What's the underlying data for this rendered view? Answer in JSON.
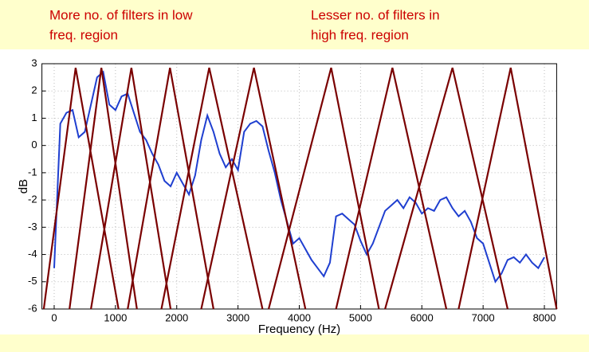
{
  "chart_data": {
    "type": "line",
    "annotations": [
      [
        "More no. of filters in low",
        "freq. region"
      ],
      [
        "Lesser no. of  filters in",
        "high  freq. region"
      ]
    ],
    "xlabel": "Frequency (Hz)",
    "ylabel": "dB",
    "xlim": [
      -200,
      8200
    ],
    "ylim": [
      -6,
      3
    ],
    "xticks": [
      0,
      1000,
      2000,
      3000,
      4000,
      5000,
      6000,
      7000,
      8000
    ],
    "yticks": [
      -6,
      -5,
      -4,
      -3,
      -2,
      -1,
      0,
      1,
      2,
      3
    ],
    "grid": true,
    "series": [
      {
        "color": "#1f3fd0",
        "x": [
          0,
          100,
          200,
          300,
          400,
          500,
          600,
          700,
          800,
          900,
          1000,
          1100,
          1200,
          1300,
          1400,
          1500,
          1600,
          1700,
          1800,
          1900,
          2000,
          2100,
          2200,
          2300,
          2400,
          2500,
          2600,
          2700,
          2800,
          2900,
          3000,
          3100,
          3200,
          3300,
          3400,
          3500,
          3600,
          3700,
          3800,
          3900,
          4000,
          4100,
          4200,
          4300,
          4400,
          4500,
          4600,
          4700,
          4800,
          4900,
          5000,
          5100,
          5200,
          5300,
          5400,
          5500,
          5600,
          5700,
          5800,
          5900,
          6000,
          6100,
          6200,
          6300,
          6400,
          6500,
          6600,
          6700,
          6800,
          6900,
          7000,
          7100,
          7200,
          7300,
          7400,
          7500,
          7600,
          7700,
          7800,
          7900,
          8000
        ],
        "values": [
          -4.5,
          0.8,
          1.2,
          1.3,
          0.3,
          0.5,
          1.5,
          2.5,
          2.7,
          1.5,
          1.3,
          1.8,
          1.9,
          1.2,
          0.5,
          0.2,
          -0.3,
          -0.7,
          -1.3,
          -1.5,
          -1.0,
          -1.4,
          -1.8,
          -1.1,
          0.2,
          1.1,
          0.5,
          -0.3,
          -0.8,
          -0.5,
          -0.9,
          0.5,
          0.8,
          0.9,
          0.7,
          -0.2,
          -1.0,
          -2.0,
          -2.8,
          -3.6,
          -3.4,
          -3.8,
          -4.2,
          -4.5,
          -4.8,
          -4.3,
          -2.6,
          -2.5,
          -2.7,
          -2.9,
          -3.5,
          -4.0,
          -3.6,
          -3.0,
          -2.4,
          -2.2,
          -2.0,
          -2.3,
          -1.9,
          -2.1,
          -2.5,
          -2.3,
          -2.4,
          -2.0,
          -1.9,
          -2.3,
          -2.6,
          -2.4,
          -2.8,
          -3.4,
          -3.6,
          -4.3,
          -5.0,
          -4.7,
          -4.2,
          -4.1,
          -4.3,
          -4.0,
          -4.3,
          -4.5,
          -4.1
        ]
      },
      {
        "color": "#7a0000",
        "x": [
          -170,
          350,
          1050
        ],
        "values": [
          -6,
          2.85,
          -6
        ]
      },
      {
        "color": "#7a0000",
        "x": [
          250,
          770,
          1350
        ],
        "values": [
          -6,
          2.85,
          -6
        ]
      },
      {
        "color": "#7a0000",
        "x": [
          600,
          1260,
          1900
        ],
        "values": [
          -6,
          2.85,
          -6
        ]
      },
      {
        "color": "#7a0000",
        "x": [
          1200,
          1890,
          2600
        ],
        "values": [
          -6,
          2.85,
          -6
        ]
      },
      {
        "color": "#7a0000",
        "x": [
          1750,
          2530,
          3400
        ],
        "values": [
          -6,
          2.85,
          -6
        ]
      },
      {
        "color": "#7a0000",
        "x": [
          2400,
          3260,
          4100
        ],
        "values": [
          -6,
          2.85,
          -6
        ]
      },
      {
        "color": "#7a0000",
        "x": [
          3500,
          4520,
          5300
        ],
        "values": [
          -6,
          2.85,
          -6
        ]
      },
      {
        "color": "#7a0000",
        "x": [
          4600,
          5520,
          6400
        ],
        "values": [
          -6,
          2.85,
          -6
        ]
      },
      {
        "color": "#7a0000",
        "x": [
          5400,
          6500,
          7400
        ],
        "values": [
          -6,
          2.85,
          -6
        ]
      },
      {
        "color": "#7a0000",
        "x": [
          6600,
          7450,
          8200
        ],
        "values": [
          -6,
          2.85,
          -6
        ]
      }
    ]
  }
}
